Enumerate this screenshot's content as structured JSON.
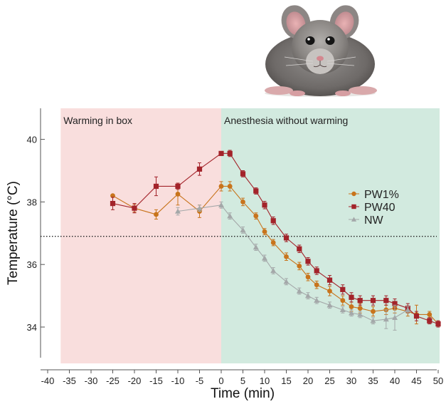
{
  "chart_data": {
    "type": "line",
    "xlabel": "Time (min)",
    "ylabel": "Temperature (°C)",
    "xlim": [
      -40,
      50
    ],
    "ylim": [
      33,
      41
    ],
    "x_ticks": [
      -40,
      -35,
      -30,
      -25,
      -20,
      -15,
      -10,
      -5,
      0,
      5,
      10,
      15,
      20,
      25,
      30,
      35,
      40,
      45,
      50
    ],
    "y_ticks": [
      34,
      36,
      38,
      40
    ],
    "reference_line": {
      "y": 36.9,
      "style": "dotted"
    },
    "regions": [
      {
        "label": "Warming in box",
        "x_start": -37,
        "x_end": 0,
        "color": "#f9dedd"
      },
      {
        "label": "Anesthesia without warming",
        "x_start": 0,
        "x_end": 51,
        "color": "#d2eadf"
      }
    ],
    "legend_position": "right",
    "series": [
      {
        "name": "PW1%",
        "color": "#c8741c",
        "marker": "circle",
        "x": [
          -25,
          -20,
          -15,
          -10,
          -5,
          0,
          2,
          5,
          8,
          10,
          12,
          15,
          18,
          20,
          22,
          25,
          28,
          30,
          32,
          35,
          38,
          40,
          43,
          45,
          48,
          50
        ],
        "y": [
          38.2,
          37.8,
          37.6,
          38.25,
          37.7,
          38.5,
          38.5,
          38.0,
          37.55,
          37.05,
          36.7,
          36.25,
          35.95,
          35.6,
          35.35,
          35.15,
          34.85,
          34.65,
          34.6,
          34.5,
          34.55,
          34.6,
          34.5,
          34.4,
          34.4,
          34.1
        ],
        "err": [
          0,
          0.12,
          0.15,
          0.35,
          0.2,
          0.15,
          0.15,
          0.12,
          0.1,
          0.1,
          0.1,
          0.12,
          0.12,
          0.12,
          0.12,
          0.15,
          0.15,
          0.15,
          0.15,
          0.15,
          0.15,
          0.15,
          0.15,
          0.3,
          0.1,
          0.1
        ]
      },
      {
        "name": "PW40",
        "color": "#a3232a",
        "marker": "square",
        "x": [
          -25,
          -20,
          -15,
          -10,
          -5,
          0,
          2,
          5,
          8,
          10,
          12,
          15,
          18,
          20,
          22,
          25,
          28,
          30,
          32,
          35,
          38,
          40,
          43,
          45,
          48,
          50
        ],
        "y": [
          37.95,
          37.8,
          38.5,
          38.5,
          39.05,
          39.55,
          39.55,
          38.9,
          38.35,
          37.9,
          37.4,
          36.85,
          36.5,
          36.1,
          35.8,
          35.5,
          35.2,
          34.95,
          34.85,
          34.85,
          34.85,
          34.75,
          34.6,
          34.35,
          34.2,
          34.1
        ],
        "err": [
          0.2,
          0.15,
          0.3,
          0.1,
          0.2,
          0.05,
          0.1,
          0.1,
          0.1,
          0.12,
          0.12,
          0.12,
          0.12,
          0.12,
          0.12,
          0.15,
          0.15,
          0.15,
          0.15,
          0.15,
          0.15,
          0.15,
          0.15,
          0.15,
          0.1,
          0.1
        ]
      },
      {
        "name": "NW",
        "color": "#a4a8a9",
        "marker": "triangle",
        "x": [
          -10,
          -5,
          0,
          2,
          5,
          8,
          10,
          12,
          15,
          18,
          20,
          22,
          25,
          28,
          30,
          32,
          35,
          38,
          40,
          43
        ],
        "y": [
          37.7,
          37.8,
          37.9,
          37.55,
          37.1,
          36.55,
          36.2,
          35.8,
          35.45,
          35.15,
          35.0,
          34.85,
          34.7,
          34.55,
          34.45,
          34.4,
          34.2,
          34.25,
          34.3,
          34.55
        ],
        "err": [
          0.12,
          0.1,
          0.1,
          0.1,
          0.1,
          0.1,
          0.1,
          0.1,
          0.1,
          0.1,
          0.1,
          0.1,
          0.1,
          0.1,
          0.1,
          0.1,
          0.1,
          0.3,
          0.4,
          0.1
        ]
      }
    ]
  }
}
